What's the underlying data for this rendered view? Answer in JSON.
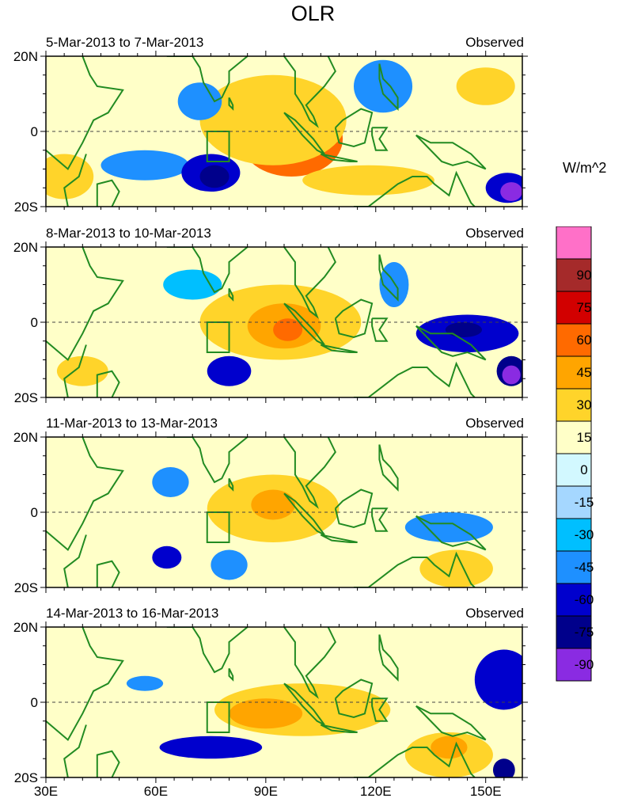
{
  "title": "OLR",
  "units": "W/m^2",
  "x_axis": {
    "ticks": [
      {
        "lon": 30,
        "label": "30E"
      },
      {
        "lon": 60,
        "label": "60E"
      },
      {
        "lon": 90,
        "label": "90E"
      },
      {
        "lon": 120,
        "label": "120E"
      },
      {
        "lon": 150,
        "label": "150E"
      }
    ],
    "range": [
      30,
      160
    ]
  },
  "y_axis": {
    "ticks": [
      {
        "lat": 20,
        "label": "20N"
      },
      {
        "lat": 0,
        "label": "0"
      },
      {
        "lat": -20,
        "label": "20S"
      }
    ],
    "range": [
      -20,
      20
    ]
  },
  "panels": [
    {
      "date_range": "5-Mar-2013 to 7-Mar-2013",
      "type_label": "Observed",
      "anomaly_blobs": [
        {
          "lon": 97,
          "lat": -2,
          "rlon": 14,
          "rlat": 10,
          "level": 60
        },
        {
          "lon": 97,
          "lat": -3,
          "rlon": 6,
          "rlat": 5,
          "level": 75
        },
        {
          "lon": 92,
          "lat": 3,
          "rlon": 20,
          "rlat": 12,
          "level": 30
        },
        {
          "lon": 118,
          "lat": -13,
          "rlon": 18,
          "rlat": 4,
          "level": 30
        },
        {
          "lon": 35,
          "lat": -12,
          "rlon": 8,
          "rlat": 6,
          "level": 30
        },
        {
          "lon": 150,
          "lat": 12,
          "rlon": 8,
          "rlat": 5,
          "level": 30
        },
        {
          "lon": 72,
          "lat": 8,
          "rlon": 6,
          "rlat": 5,
          "level": -45
        },
        {
          "lon": 122,
          "lat": 12,
          "rlon": 8,
          "rlat": 7,
          "level": -45
        },
        {
          "lon": 57,
          "lat": -9,
          "rlon": 12,
          "rlat": 4,
          "level": -45
        },
        {
          "lon": 75,
          "lat": -11,
          "rlon": 8,
          "rlat": 5,
          "level": -60
        },
        {
          "lon": 76,
          "lat": -12,
          "rlon": 4,
          "rlat": 3,
          "level": -75
        },
        {
          "lon": 156,
          "lat": -15,
          "rlon": 6,
          "rlat": 4,
          "level": -60
        },
        {
          "lon": 157,
          "lat": -16,
          "rlon": 3,
          "rlat": 2.5,
          "level": -90
        }
      ]
    },
    {
      "date_range": "8-Mar-2013 to 10-Mar-2013",
      "type_label": "Observed",
      "anomaly_blobs": [
        {
          "lon": 94,
          "lat": 0,
          "rlon": 22,
          "rlat": 10,
          "level": 30
        },
        {
          "lon": 95,
          "lat": -1,
          "rlon": 10,
          "rlat": 6,
          "level": 45
        },
        {
          "lon": 96,
          "lat": -2,
          "rlon": 4,
          "rlat": 3,
          "level": 60
        },
        {
          "lon": 40,
          "lat": -13,
          "rlon": 7,
          "rlat": 4,
          "level": 30
        },
        {
          "lon": 70,
          "lat": 10,
          "rlon": 8,
          "rlat": 4,
          "level": -30
        },
        {
          "lon": 80,
          "lat": -13,
          "rlon": 6,
          "rlat": 4,
          "level": -60
        },
        {
          "lon": 125,
          "lat": 10,
          "rlon": 4,
          "rlat": 6,
          "level": -45
        },
        {
          "lon": 145,
          "lat": -3,
          "rlon": 14,
          "rlat": 5,
          "level": -60
        },
        {
          "lon": 144,
          "lat": -2,
          "rlon": 5,
          "rlat": 2,
          "level": -75
        },
        {
          "lon": 157,
          "lat": -13,
          "rlon": 4,
          "rlat": 4,
          "level": -75
        },
        {
          "lon": 157,
          "lat": -14,
          "rlon": 2.5,
          "rlat": 2.5,
          "level": -90
        }
      ]
    },
    {
      "date_range": "11-Mar-2013 to 13-Mar-2013",
      "type_label": "Observed",
      "anomaly_blobs": [
        {
          "lon": 92,
          "lat": 1,
          "rlon": 18,
          "rlat": 9,
          "level": 30
        },
        {
          "lon": 92,
          "lat": 2,
          "rlon": 6,
          "rlat": 4,
          "level": 45
        },
        {
          "lon": 142,
          "lat": -15,
          "rlon": 10,
          "rlat": 5,
          "level": 30
        },
        {
          "lon": 130,
          "lat": 10,
          "rlon": 6,
          "rlat": 5,
          "level": 15
        },
        {
          "lon": 64,
          "lat": 8,
          "rlon": 5,
          "rlat": 4,
          "level": -45
        },
        {
          "lon": 63,
          "lat": -12,
          "rlon": 4,
          "rlat": 3,
          "level": -60
        },
        {
          "lon": 80,
          "lat": -14,
          "rlon": 5,
          "rlat": 4,
          "level": -45
        },
        {
          "lon": 140,
          "lat": -4,
          "rlon": 12,
          "rlat": 4,
          "level": -45
        }
      ]
    },
    {
      "date_range": "14-Mar-2013 to 16-Mar-2013",
      "type_label": "Observed",
      "anomaly_blobs": [
        {
          "lon": 100,
          "lat": -2,
          "rlon": 24,
          "rlat": 7,
          "level": 30
        },
        {
          "lon": 90,
          "lat": -3,
          "rlon": 10,
          "rlat": 4,
          "level": 45
        },
        {
          "lon": 140,
          "lat": -14,
          "rlon": 12,
          "rlat": 6,
          "level": 30
        },
        {
          "lon": 140,
          "lat": -12,
          "rlon": 5,
          "rlat": 3,
          "level": 45
        },
        {
          "lon": 155,
          "lat": 6,
          "rlon": 8,
          "rlat": 8,
          "level": -60
        },
        {
          "lon": 57,
          "lat": 5,
          "rlon": 5,
          "rlat": 2,
          "level": -45
        },
        {
          "lon": 75,
          "lat": -12,
          "rlon": 14,
          "rlat": 3,
          "level": -60
        },
        {
          "lon": 155,
          "lat": -18,
          "rlon": 3,
          "rlat": 3,
          "level": -75
        }
      ]
    }
  ],
  "colorbar": {
    "bins": [
      {
        "label": "",
        "color": "#ff70c8"
      },
      {
        "label": "90",
        "color": "#a52a2a"
      },
      {
        "label": "75",
        "color": "#d20000"
      },
      {
        "label": "60",
        "color": "#ff6a00"
      },
      {
        "label": "45",
        "color": "#ffa500"
      },
      {
        "label": "30",
        "color": "#ffd42a"
      },
      {
        "label": "15",
        "color": "#ffffc8"
      },
      {
        "label": "0",
        "color": "#d2f8ff"
      },
      {
        "label": "-15",
        "color": "#a5d7ff"
      },
      {
        "label": "-30",
        "color": "#00bfff"
      },
      {
        "label": "-45",
        "color": "#1e90ff"
      },
      {
        "label": "-60",
        "color": "#0000cd"
      },
      {
        "label": "-75",
        "color": "#00008b"
      },
      {
        "label": "-90",
        "color": "#8a2be2"
      }
    ]
  },
  "colors": {
    "coast": "#228b22",
    "neutral_fill": "#ffffc8"
  }
}
